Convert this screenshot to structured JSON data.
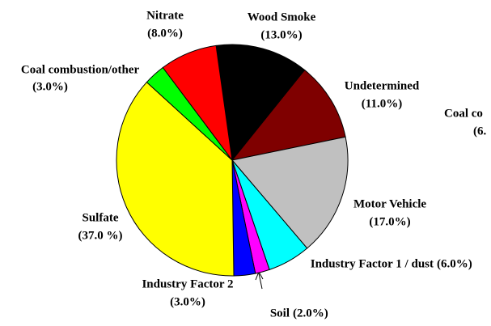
{
  "chart_data": {
    "type": "pie",
    "categories": [
      "Wood Smoke",
      "Undetermined",
      "Motor Vehicle",
      "Industry Factor 1 / dust",
      "Soil",
      "Industry Factor 2",
      "Sulfate",
      "Coal combustion/other",
      "Nitrate"
    ],
    "values": [
      13,
      11,
      17,
      6,
      2,
      3,
      37,
      3,
      8
    ],
    "value_labels": [
      "(13.0%)",
      "(11.0%)",
      "(17.0%)",
      "(6.0%)",
      "(2.0%)",
      "(3.0%)",
      "(37.0 %)",
      "(3.0%)",
      "(8.0%)"
    ],
    "colors": [
      "#000000",
      "#7f0000",
      "#c0c0c0",
      "#00ffff",
      "#ff00ff",
      "#0000ff",
      "#ffff00",
      "#00ff00",
      "#ff0000"
    ],
    "annotations": [
      "Coal co",
      "(6."
    ]
  }
}
